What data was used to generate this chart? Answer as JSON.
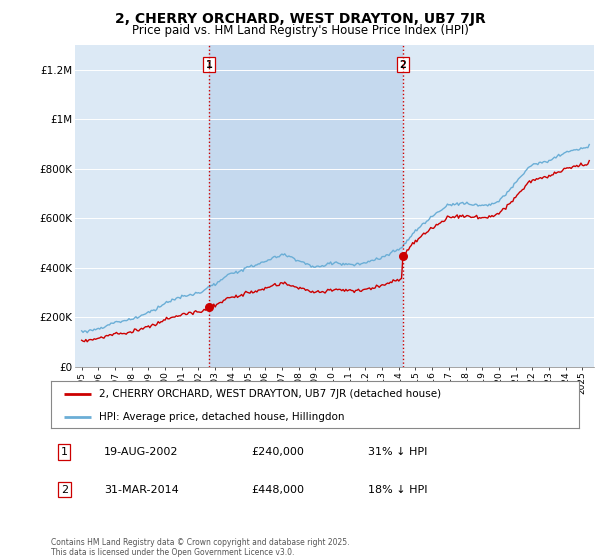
{
  "title": "2, CHERRY ORCHARD, WEST DRAYTON, UB7 7JR",
  "subtitle": "Price paid vs. HM Land Registry's House Price Index (HPI)",
  "title_fontsize": 10,
  "subtitle_fontsize": 8.5,
  "plot_bg_color": "#dce9f5",
  "highlight_color": "#c5d9ee",
  "ylim": [
    0,
    1300000
  ],
  "yticks": [
    0,
    200000,
    400000,
    600000,
    800000,
    1000000,
    1200000
  ],
  "ytick_labels": [
    "£0",
    "£200K",
    "£400K",
    "£600K",
    "£800K",
    "£1M",
    "£1.2M"
  ],
  "sale1_year": 2002.637,
  "sale1_price": 240000,
  "sale2_year": 2014.247,
  "sale2_price": 448000,
  "vline_color": "#cc0000",
  "hpi_line_color": "#6baed6",
  "price_line_color": "#cc0000",
  "legend_entry1": "2, CHERRY ORCHARD, WEST DRAYTON, UB7 7JR (detached house)",
  "legend_entry2": "HPI: Average price, detached house, Hillingdon",
  "annotation1_date": "19-AUG-2002",
  "annotation1_price": "£240,000",
  "annotation1_hpi": "31% ↓ HPI",
  "annotation2_date": "31-MAR-2014",
  "annotation2_price": "£448,000",
  "annotation2_hpi": "18% ↓ HPI",
  "footer": "Contains HM Land Registry data © Crown copyright and database right 2025.\nThis data is licensed under the Open Government Licence v3.0."
}
